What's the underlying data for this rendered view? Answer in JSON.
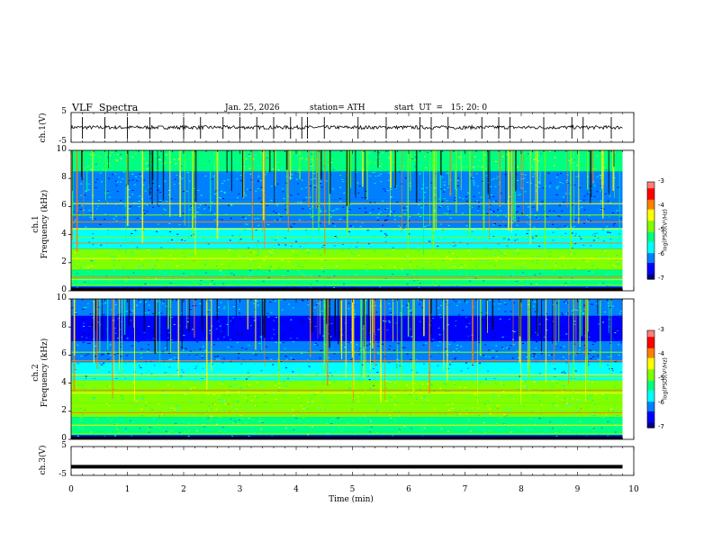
{
  "header": {
    "title": "VLF  Spectra",
    "date": "Jan. 25, 2026",
    "station": "station= ATH",
    "start": "start  UT  =   15: 20: 0"
  },
  "colors": {
    "palette": [
      "#000000",
      "#00007f",
      "#0000ff",
      "#0080ff",
      "#00ffff",
      "#00ff80",
      "#80ff00",
      "#ffff00",
      "#ff8000",
      "#ff0000",
      "#ff8080",
      "#ffffff"
    ]
  },
  "chart_data": [
    {
      "type": "line",
      "name": "ch1_waveform",
      "ylabel": "ch.1(V)",
      "yticks": [
        "5",
        "-5"
      ],
      "ylim": [
        -5,
        5
      ],
      "xlim": [
        0,
        10
      ],
      "baseline_value": 0,
      "spike_times_min": [
        0.2,
        0.6,
        1.0,
        1.4,
        2.0,
        2.3,
        2.7,
        3.0,
        3.3,
        3.6,
        3.9,
        4.1,
        4.2,
        4.5,
        5.1,
        5.6,
        6.2,
        6.4,
        6.7,
        7.3,
        7.6,
        7.8,
        8.4,
        8.9,
        9.1,
        9.6
      ]
    },
    {
      "type": "heatmap",
      "name": "ch1_spectrogram",
      "ylabel": "ch.1\nFrequency (kHz)",
      "yticks": [
        "10",
        "8",
        "6",
        "4",
        "2",
        "0"
      ],
      "ylim": [
        0,
        10
      ],
      "xlim": [
        0,
        10
      ],
      "colorbar_label": "log(PSD)(V²/Hz)",
      "colorbar_ticks": [
        "-3",
        "-4",
        "-5",
        "-6",
        "-7"
      ],
      "colorbar_range": [
        -7,
        -3
      ],
      "line_bands_khz": [
        0.4,
        0.8,
        1.0,
        2.0,
        2.3,
        3.4,
        3.8,
        4.4,
        4.9,
        5.4,
        6.2
      ],
      "bands": [
        {
          "from_khz": 0.0,
          "to_khz": 0.3,
          "level": -6.6
        },
        {
          "from_khz": 0.3,
          "to_khz": 1.5,
          "level": -5.4
        },
        {
          "from_khz": 1.5,
          "to_khz": 3.0,
          "level": -5.0
        },
        {
          "from_khz": 3.0,
          "to_khz": 4.5,
          "level": -5.6
        },
        {
          "from_khz": 4.5,
          "to_khz": 6.5,
          "level": -6.0
        },
        {
          "from_khz": 6.5,
          "to_khz": 8.5,
          "level": -5.9
        },
        {
          "from_khz": 8.5,
          "to_khz": 10.0,
          "level": -5.1
        }
      ]
    },
    {
      "type": "heatmap",
      "name": "ch2_spectrogram",
      "ylabel": "ch.2\nFrequency (kHz)",
      "yticks": [
        "10",
        "8",
        "6",
        "4",
        "2",
        "0"
      ],
      "ylim": [
        0,
        10
      ],
      "xlim": [
        0,
        10
      ],
      "colorbar_label": "log(PSD)(V²/Hz)",
      "colorbar_ticks": [
        "-3",
        "-4",
        "-5",
        "-6",
        "-7"
      ],
      "colorbar_range": [
        -7,
        -3
      ],
      "line_bands_khz": [
        0.4,
        1.0,
        1.9,
        2.3,
        3.3,
        3.5,
        4.4,
        4.6,
        5.6,
        6.2
      ],
      "bands": [
        {
          "from_khz": 0.0,
          "to_khz": 0.3,
          "level": -6.4
        },
        {
          "from_khz": 0.3,
          "to_khz": 1.6,
          "level": -5.3
        },
        {
          "from_khz": 1.6,
          "to_khz": 2.6,
          "level": -4.9
        },
        {
          "from_khz": 2.6,
          "to_khz": 4.2,
          "level": -5.0
        },
        {
          "from_khz": 4.2,
          "to_khz": 5.5,
          "level": -5.6
        },
        {
          "from_khz": 5.5,
          "to_khz": 7.0,
          "level": -6.2
        },
        {
          "from_khz": 7.0,
          "to_khz": 8.8,
          "level": -6.6
        },
        {
          "from_khz": 8.8,
          "to_khz": 10.0,
          "level": -6.0
        }
      ]
    },
    {
      "type": "line",
      "name": "ch3_waveform",
      "ylabel": "ch.3(V)",
      "yticks": [
        "5",
        "-5"
      ],
      "ylim": [
        -5,
        5
      ],
      "xlim": [
        0,
        10
      ],
      "baseline_value": -2
    }
  ],
  "xaxis": {
    "label": "Time  (min)",
    "ticks": [
      "0",
      "1",
      "2",
      "3",
      "4",
      "5",
      "6",
      "7",
      "8",
      "9",
      "10"
    ],
    "data_end_min": 9.8
  }
}
